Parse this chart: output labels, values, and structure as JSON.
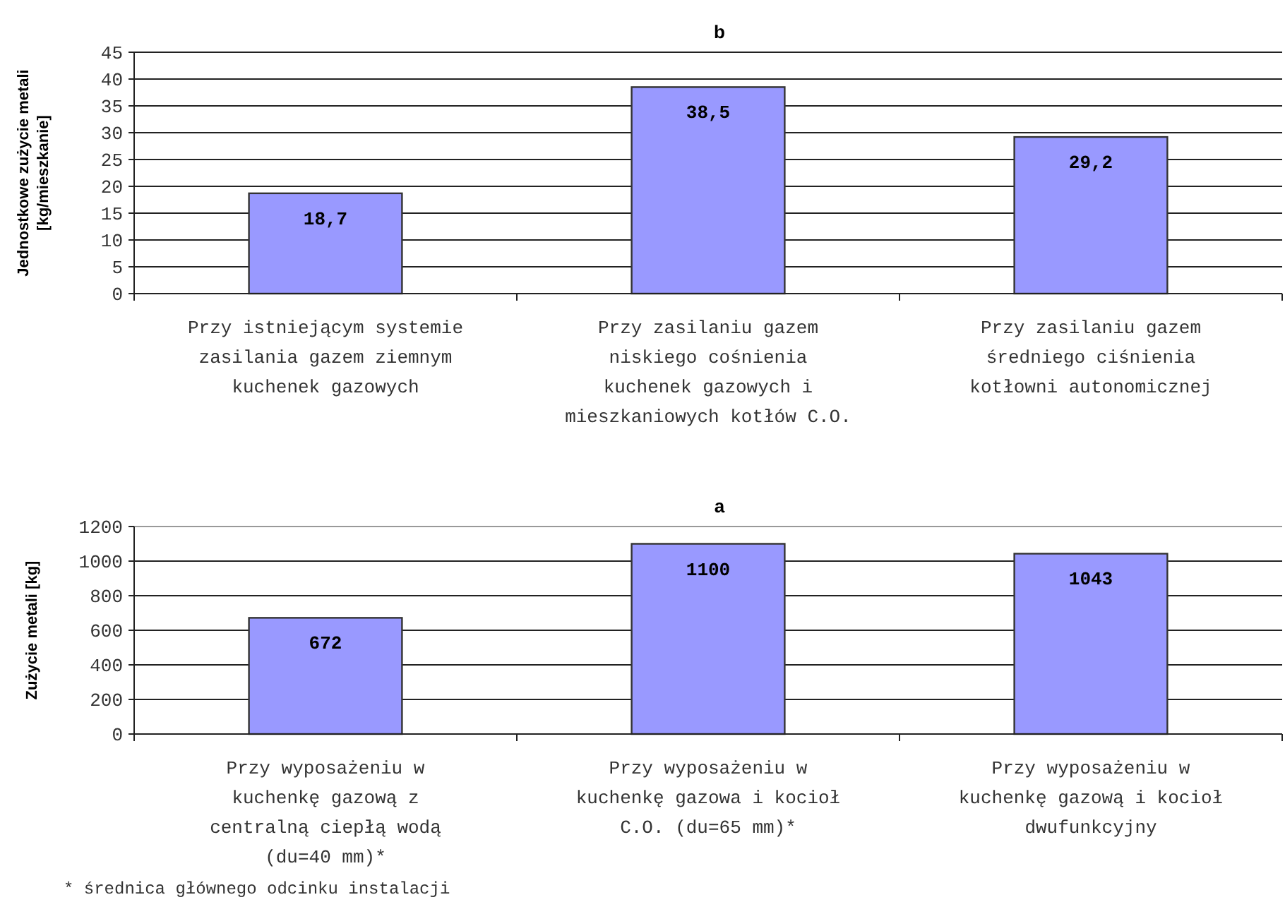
{
  "chart_data": [
    {
      "type": "bar",
      "title": "b",
      "ylabel": "Jednostkowe zużycie metali [kg/mieszkanie]",
      "categories": [
        "Przy istniejącym systemie zasilania gazem ziemnym kuchenek gazowych",
        "Przy zasilaniu gazem niskiego cośnienia kuchenek gazowych i mieszkaniowych kotłów C.O.",
        "Przy zasilaniu gazem średniego ciśnienia kotłowni autonomicznej"
      ],
      "values": [
        18.7,
        38.5,
        29.2
      ],
      "value_labels": [
        "18,7",
        "38,5",
        "29,2"
      ],
      "color": "#9999ff",
      "ylim": [
        0,
        45
      ],
      "yticks": [
        0,
        5,
        10,
        15,
        20,
        25,
        30,
        35,
        40,
        45
      ],
      "grid": "y"
    },
    {
      "type": "bar",
      "title": "a",
      "ylabel": "Zużycie metali [kg]",
      "categories": [
        "Przy wyposażeniu w kuchenkę gazową z centralną ciepłą wodą (du=40 mm)*",
        "Przy wyposażeniu w kuchenkę gazowa i kocioł C.O. (du=65 mm)*",
        "Przy wyposażeniu w kuchenkę gazową i kocioł dwufunkcyjny"
      ],
      "values": [
        672,
        1100,
        1043
      ],
      "data_labels": true,
      "color": "#9999ff",
      "ylim": [
        0,
        1200
      ],
      "yticks": [
        0,
        200,
        400,
        600,
        800,
        1000,
        1200
      ],
      "grid": "y",
      "annotations": [
        "* średnica głównego odcinku instalacji"
      ]
    }
  ]
}
